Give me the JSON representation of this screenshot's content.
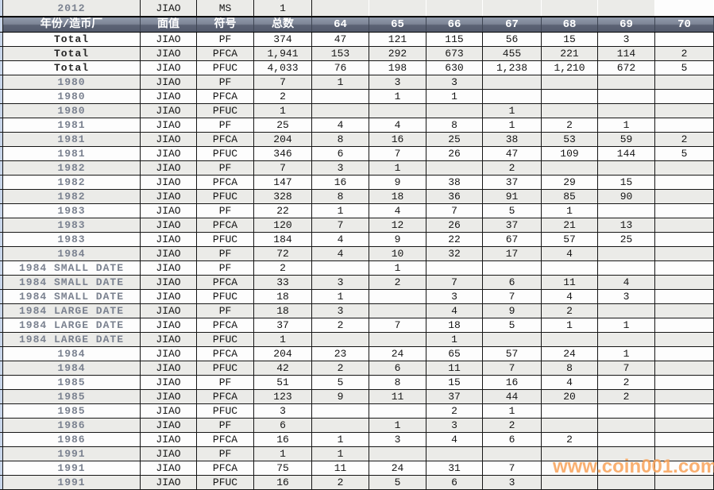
{
  "colors": {
    "header_bg_top": "#909aab",
    "header_bg_bottom": "#545b6d",
    "header_text": "#ffffff",
    "row_alt": "#ebebe8",
    "row_base": "#fdfdfd",
    "grid_border": "#161616",
    "left_strip": "#c8d5e9",
    "year_text": "#7b8290",
    "watermark_orange": "#f8a45c"
  },
  "watermark": {
    "text": "www.coin001.com"
  },
  "table": {
    "top_row": {
      "year": "2012",
      "denom": "JIAO",
      "symbol": "MS",
      "total": "1",
      "grades": [
        "",
        "",
        "",
        "",
        "",
        "",
        ""
      ]
    },
    "header": {
      "year_mint": "年份/造币厂",
      "denomination": "面值",
      "symbol": "符号",
      "total": "总数",
      "grades": [
        "64",
        "65",
        "66",
        "67",
        "68",
        "69",
        "70"
      ]
    },
    "rows": [
      {
        "year": "Total",
        "denom": "JIAO",
        "symbol": "PF",
        "total": "374",
        "grades": [
          "47",
          "121",
          "115",
          "56",
          "15",
          "3",
          ""
        ]
      },
      {
        "year": "Total",
        "denom": "JIAO",
        "symbol": "PFCA",
        "total": "1,941",
        "grades": [
          "153",
          "292",
          "673",
          "455",
          "221",
          "114",
          "2"
        ]
      },
      {
        "year": "Total",
        "denom": "JIAO",
        "symbol": "PFUC",
        "total": "4,033",
        "grades": [
          "76",
          "198",
          "630",
          "1,238",
          "1,210",
          "672",
          "5"
        ]
      },
      {
        "year": "1980",
        "denom": "JIAO",
        "symbol": "PF",
        "total": "7",
        "grades": [
          "1",
          "3",
          "3",
          "",
          "",
          "",
          ""
        ]
      },
      {
        "year": "1980",
        "denom": "JIAO",
        "symbol": "PFCA",
        "total": "2",
        "grades": [
          "",
          "1",
          "1",
          "",
          "",
          "",
          ""
        ]
      },
      {
        "year": "1980",
        "denom": "JIAO",
        "symbol": "PFUC",
        "total": "1",
        "grades": [
          "",
          "",
          "",
          "1",
          "",
          "",
          ""
        ]
      },
      {
        "year": "1981",
        "denom": "JIAO",
        "symbol": "PF",
        "total": "25",
        "grades": [
          "4",
          "4",
          "8",
          "1",
          "2",
          "1",
          ""
        ]
      },
      {
        "year": "1981",
        "denom": "JIAO",
        "symbol": "PFCA",
        "total": "204",
        "grades": [
          "8",
          "16",
          "25",
          "38",
          "53",
          "59",
          "2"
        ]
      },
      {
        "year": "1981",
        "denom": "JIAO",
        "symbol": "PFUC",
        "total": "346",
        "grades": [
          "6",
          "7",
          "26",
          "47",
          "109",
          "144",
          "5"
        ]
      },
      {
        "year": "1982",
        "denom": "JIAO",
        "symbol": "PF",
        "total": "7",
        "grades": [
          "3",
          "1",
          "",
          "2",
          "",
          "",
          ""
        ]
      },
      {
        "year": "1982",
        "denom": "JIAO",
        "symbol": "PFCA",
        "total": "147",
        "grades": [
          "16",
          "9",
          "38",
          "37",
          "29",
          "15",
          ""
        ]
      },
      {
        "year": "1982",
        "denom": "JIAO",
        "symbol": "PFUC",
        "total": "328",
        "grades": [
          "8",
          "18",
          "36",
          "91",
          "85",
          "90",
          ""
        ]
      },
      {
        "year": "1983",
        "denom": "JIAO",
        "symbol": "PF",
        "total": "22",
        "grades": [
          "1",
          "4",
          "7",
          "5",
          "1",
          "",
          ""
        ]
      },
      {
        "year": "1983",
        "denom": "JIAO",
        "symbol": "PFCA",
        "total": "120",
        "grades": [
          "7",
          "12",
          "26",
          "37",
          "21",
          "13",
          ""
        ]
      },
      {
        "year": "1983",
        "denom": "JIAO",
        "symbol": "PFUC",
        "total": "184",
        "grades": [
          "4",
          "9",
          "22",
          "67",
          "57",
          "25",
          ""
        ]
      },
      {
        "year": "1984",
        "denom": "JIAO",
        "symbol": "PF",
        "total": "72",
        "grades": [
          "4",
          "10",
          "32",
          "17",
          "4",
          "",
          ""
        ]
      },
      {
        "year": "1984 SMALL DATE",
        "denom": "JIAO",
        "symbol": "PF",
        "total": "2",
        "grades": [
          "",
          "1",
          "",
          "",
          "",
          "",
          ""
        ]
      },
      {
        "year": "1984 SMALL DATE",
        "denom": "JIAO",
        "symbol": "PFCA",
        "total": "33",
        "grades": [
          "3",
          "2",
          "7",
          "6",
          "11",
          "4",
          ""
        ]
      },
      {
        "year": "1984 SMALL DATE",
        "denom": "JIAO",
        "symbol": "PFUC",
        "total": "18",
        "grades": [
          "1",
          "",
          "3",
          "7",
          "4",
          "3",
          ""
        ]
      },
      {
        "year": "1984 LARGE DATE",
        "denom": "JIAO",
        "symbol": "PF",
        "total": "18",
        "grades": [
          "3",
          "",
          "4",
          "9",
          "2",
          "",
          ""
        ]
      },
      {
        "year": "1984 LARGE DATE",
        "denom": "JIAO",
        "symbol": "PFCA",
        "total": "37",
        "grades": [
          "2",
          "7",
          "18",
          "5",
          "1",
          "1",
          ""
        ]
      },
      {
        "year": "1984 LARGE DATE",
        "denom": "JIAO",
        "symbol": "PFUC",
        "total": "1",
        "grades": [
          "",
          "",
          "1",
          "",
          "",
          "",
          ""
        ]
      },
      {
        "year": "1984",
        "denom": "JIAO",
        "symbol": "PFCA",
        "total": "204",
        "grades": [
          "23",
          "24",
          "65",
          "57",
          "24",
          "1",
          ""
        ]
      },
      {
        "year": "1984",
        "denom": "JIAO",
        "symbol": "PFUC",
        "total": "42",
        "grades": [
          "2",
          "6",
          "11",
          "7",
          "8",
          "7",
          ""
        ]
      },
      {
        "year": "1985",
        "denom": "JIAO",
        "symbol": "PF",
        "total": "51",
        "grades": [
          "5",
          "8",
          "15",
          "16",
          "4",
          "2",
          ""
        ]
      },
      {
        "year": "1985",
        "denom": "JIAO",
        "symbol": "PFCA",
        "total": "123",
        "grades": [
          "9",
          "11",
          "37",
          "44",
          "20",
          "2",
          ""
        ]
      },
      {
        "year": "1985",
        "denom": "JIAO",
        "symbol": "PFUC",
        "total": "3",
        "grades": [
          "",
          "",
          "2",
          "1",
          "",
          "",
          ""
        ]
      },
      {
        "year": "1986",
        "denom": "JIAO",
        "symbol": "PF",
        "total": "6",
        "grades": [
          "",
          "1",
          "3",
          "2",
          "",
          "",
          ""
        ]
      },
      {
        "year": "1986",
        "denom": "JIAO",
        "symbol": "PFCA",
        "total": "16",
        "grades": [
          "1",
          "3",
          "4",
          "6",
          "2",
          "",
          ""
        ]
      },
      {
        "year": "1991",
        "denom": "JIAO",
        "symbol": "PF",
        "total": "1",
        "grades": [
          "1",
          "",
          "",
          "",
          "",
          "",
          ""
        ]
      },
      {
        "year": "1991",
        "denom": "JIAO",
        "symbol": "PFCA",
        "total": "75",
        "grades": [
          "11",
          "24",
          "31",
          "7",
          "",
          "",
          ""
        ]
      },
      {
        "year": "1991",
        "denom": "JIAO",
        "symbol": "PFUC",
        "total": "16",
        "grades": [
          "2",
          "5",
          "6",
          "3",
          "",
          "",
          ""
        ]
      }
    ]
  }
}
